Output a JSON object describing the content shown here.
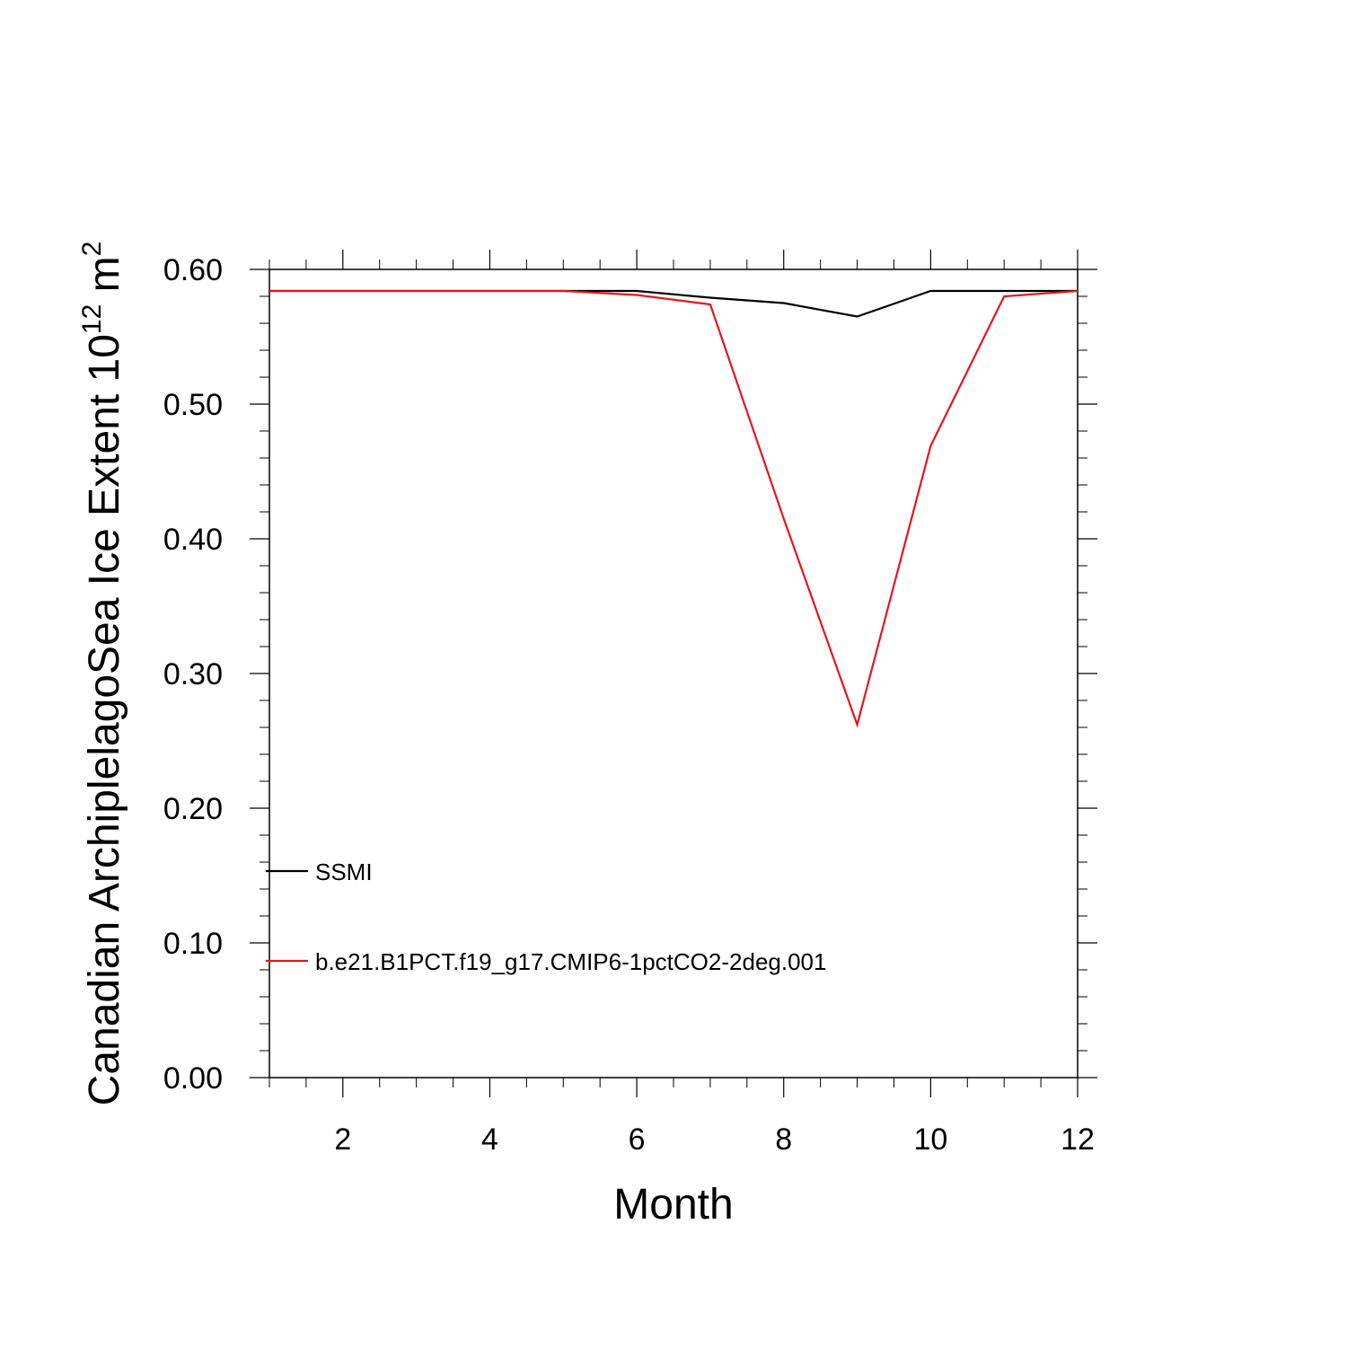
{
  "chart_data": {
    "type": "line",
    "xlabel": "Month",
    "ylabel_main": "Canadian ArchiplelagoSea Ice Extent 10",
    "ylabel_sup": "12",
    "ylabel_unit": " m",
    "ylabel_unit_sup": "2",
    "xlim": [
      1,
      12
    ],
    "ylim": [
      0.0,
      0.6
    ],
    "x_ticks": [
      2,
      4,
      6,
      8,
      10,
      12
    ],
    "x_tick_labels": [
      "2",
      "4",
      "6",
      "8",
      "10",
      "12"
    ],
    "y_ticks": [
      0.0,
      0.1,
      0.2,
      0.3,
      0.4,
      0.5,
      0.6
    ],
    "y_tick_labels": [
      "0.00",
      "0.10",
      "0.20",
      "0.30",
      "0.40",
      "0.50",
      "0.60"
    ],
    "grid": false,
    "legend_position": "bottom-left",
    "x": [
      1,
      2,
      3,
      4,
      5,
      6,
      7,
      8,
      9,
      10,
      11,
      12
    ],
    "series": [
      {
        "name": "SSMI",
        "color": "#000000",
        "values": [
          0.584,
          0.584,
          0.584,
          0.584,
          0.584,
          0.584,
          0.579,
          0.575,
          0.565,
          0.584,
          0.584,
          0.584
        ]
      },
      {
        "name": "b.e21.B1PCT.f19_g17.CMIP6-1pctCO2-2deg.001",
        "color": "#e8141c",
        "values": [
          0.584,
          0.584,
          0.584,
          0.584,
          0.584,
          0.581,
          0.574,
          0.415,
          0.262,
          0.469,
          0.58,
          0.584
        ]
      }
    ]
  }
}
